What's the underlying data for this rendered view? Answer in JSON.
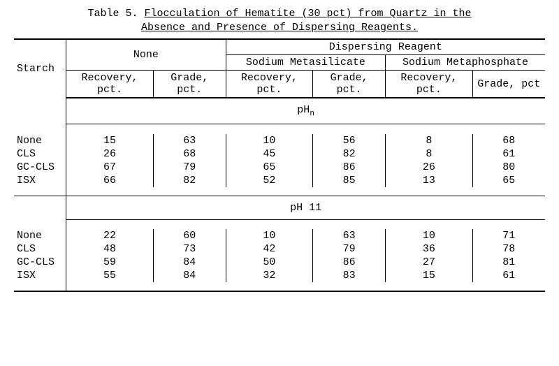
{
  "title": {
    "prefix": "Table 5.",
    "line1": "Flocculation of Hematite (30 pct) from Quartz in the",
    "line2": "Absence and Presence of Dispersing Reagents."
  },
  "headers": {
    "starch": "Starch",
    "dispersing": "Dispersing Reagent",
    "none": "None",
    "metasilicate": "Sodium Metasilicate",
    "metaphosphate": "Sodium Metaphosphate",
    "recovery": "Recovery, pct.",
    "grade": "Grade, pct.",
    "grade_last": "Grade, pct"
  },
  "sections": {
    "phn": "pH",
    "phn_sub": "n",
    "ph11": "pH 11"
  },
  "rows_phn": [
    {
      "label": "None",
      "v": [
        "15",
        "63",
        "10",
        "56",
        "8",
        "68"
      ]
    },
    {
      "label": "CLS",
      "v": [
        "26",
        "68",
        "45",
        "82",
        "8",
        "61"
      ]
    },
    {
      "label": "GC-CLS",
      "v": [
        "67",
        "79",
        "65",
        "86",
        "26",
        "80"
      ]
    },
    {
      "label": "ISX",
      "v": [
        "66",
        "82",
        "52",
        "85",
        "13",
        "65"
      ]
    }
  ],
  "rows_ph11": [
    {
      "label": "None",
      "v": [
        "22",
        "60",
        "10",
        "63",
        "10",
        "71"
      ]
    },
    {
      "label": "CLS",
      "v": [
        "48",
        "73",
        "42",
        "79",
        "36",
        "78"
      ]
    },
    {
      "label": "GC-CLS",
      "v": [
        "59",
        "84",
        "50",
        "86",
        "27",
        "81"
      ]
    },
    {
      "label": "ISX",
      "v": [
        "55",
        "84",
        "32",
        "83",
        "15",
        "61"
      ]
    }
  ]
}
